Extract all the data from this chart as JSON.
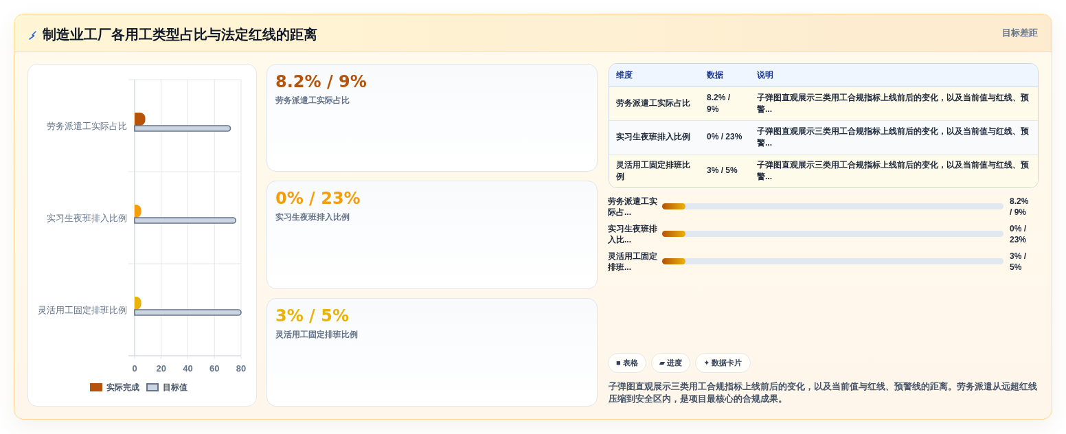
{
  "chart_data": [
    {
      "type": "other",
      "title": "制造业工厂各用工类型占比与法定红线的距离",
      "subtitle": "目标差距"
    },
    {
      "type": "bar",
      "orientation": "horizontal",
      "categories": [
        "劳务派遣工实际占比",
        "实习生夜班排入比例",
        "灵活用工固定排班比例"
      ],
      "series": [
        {
          "name": "实际完成",
          "color": "#b45309",
          "colors": [
            "#b45309",
            "#f59e0b",
            "#eab308"
          ],
          "values": [
            8,
            5,
            5
          ]
        },
        {
          "name": "目标值",
          "color": "#cbd5e1",
          "values": [
            72,
            76,
            80
          ]
        }
      ],
      "xlim": [
        0,
        80
      ],
      "xticks": [
        0,
        20,
        40,
        60,
        80
      ],
      "grid": true,
      "legend": "bottom"
    },
    {
      "type": "other",
      "title": "8.2% / 9%",
      "subtitle": "劳务派遣工实际占比",
      "color": "#b45309"
    },
    {
      "type": "other",
      "title": "0% / 23%",
      "subtitle": "实习生夜班排入比例",
      "color": "#f59e0b"
    },
    {
      "type": "other",
      "title": "3% / 5%",
      "subtitle": "灵活用工固定排班比例",
      "color": "#eab308"
    },
    {
      "type": "other",
      "categories": [
        "维度",
        "数据",
        "说明"
      ],
      "cell_labels": [
        [
          "劳务派遣工实际占比",
          "8.2% / 9%",
          "子弹图直观展示三类用工合规指标上线前后的变化，以及当前值与红线、预警..."
        ],
        [
          "实习生夜班排入比例",
          "0% / 23%",
          "子弹图直观展示三类用工合规指标上线前后的变化，以及当前值与红线、预警..."
        ],
        [
          "灵活用工固定排班比例",
          "3% / 5%",
          "子弹图直观展示三类用工合规指标上线前后的变化，以及当前值与红线、预警..."
        ]
      ]
    },
    {
      "type": "other",
      "y_categories": [
        "劳务派遣工实际占...",
        "实习生夜班排入比...",
        "灵活用工固定排班..."
      ],
      "cell_labels": [
        [
          "8.2% / 9%"
        ],
        [
          "0% / 23%"
        ],
        [
          "3% / 5%"
        ]
      ]
    },
    {
      "type": "other",
      "annotations": [
        "■ 表格",
        "▰ 进度",
        "✦ 数据卡片",
        "子弹图直观展示三类用工合规指标上线前后的变化，以及当前值与红线、预警线的距离。劳务派遣从远超红线压缩到安全区内，是项目最核心的合规成果。"
      ]
    }
  ]
}
